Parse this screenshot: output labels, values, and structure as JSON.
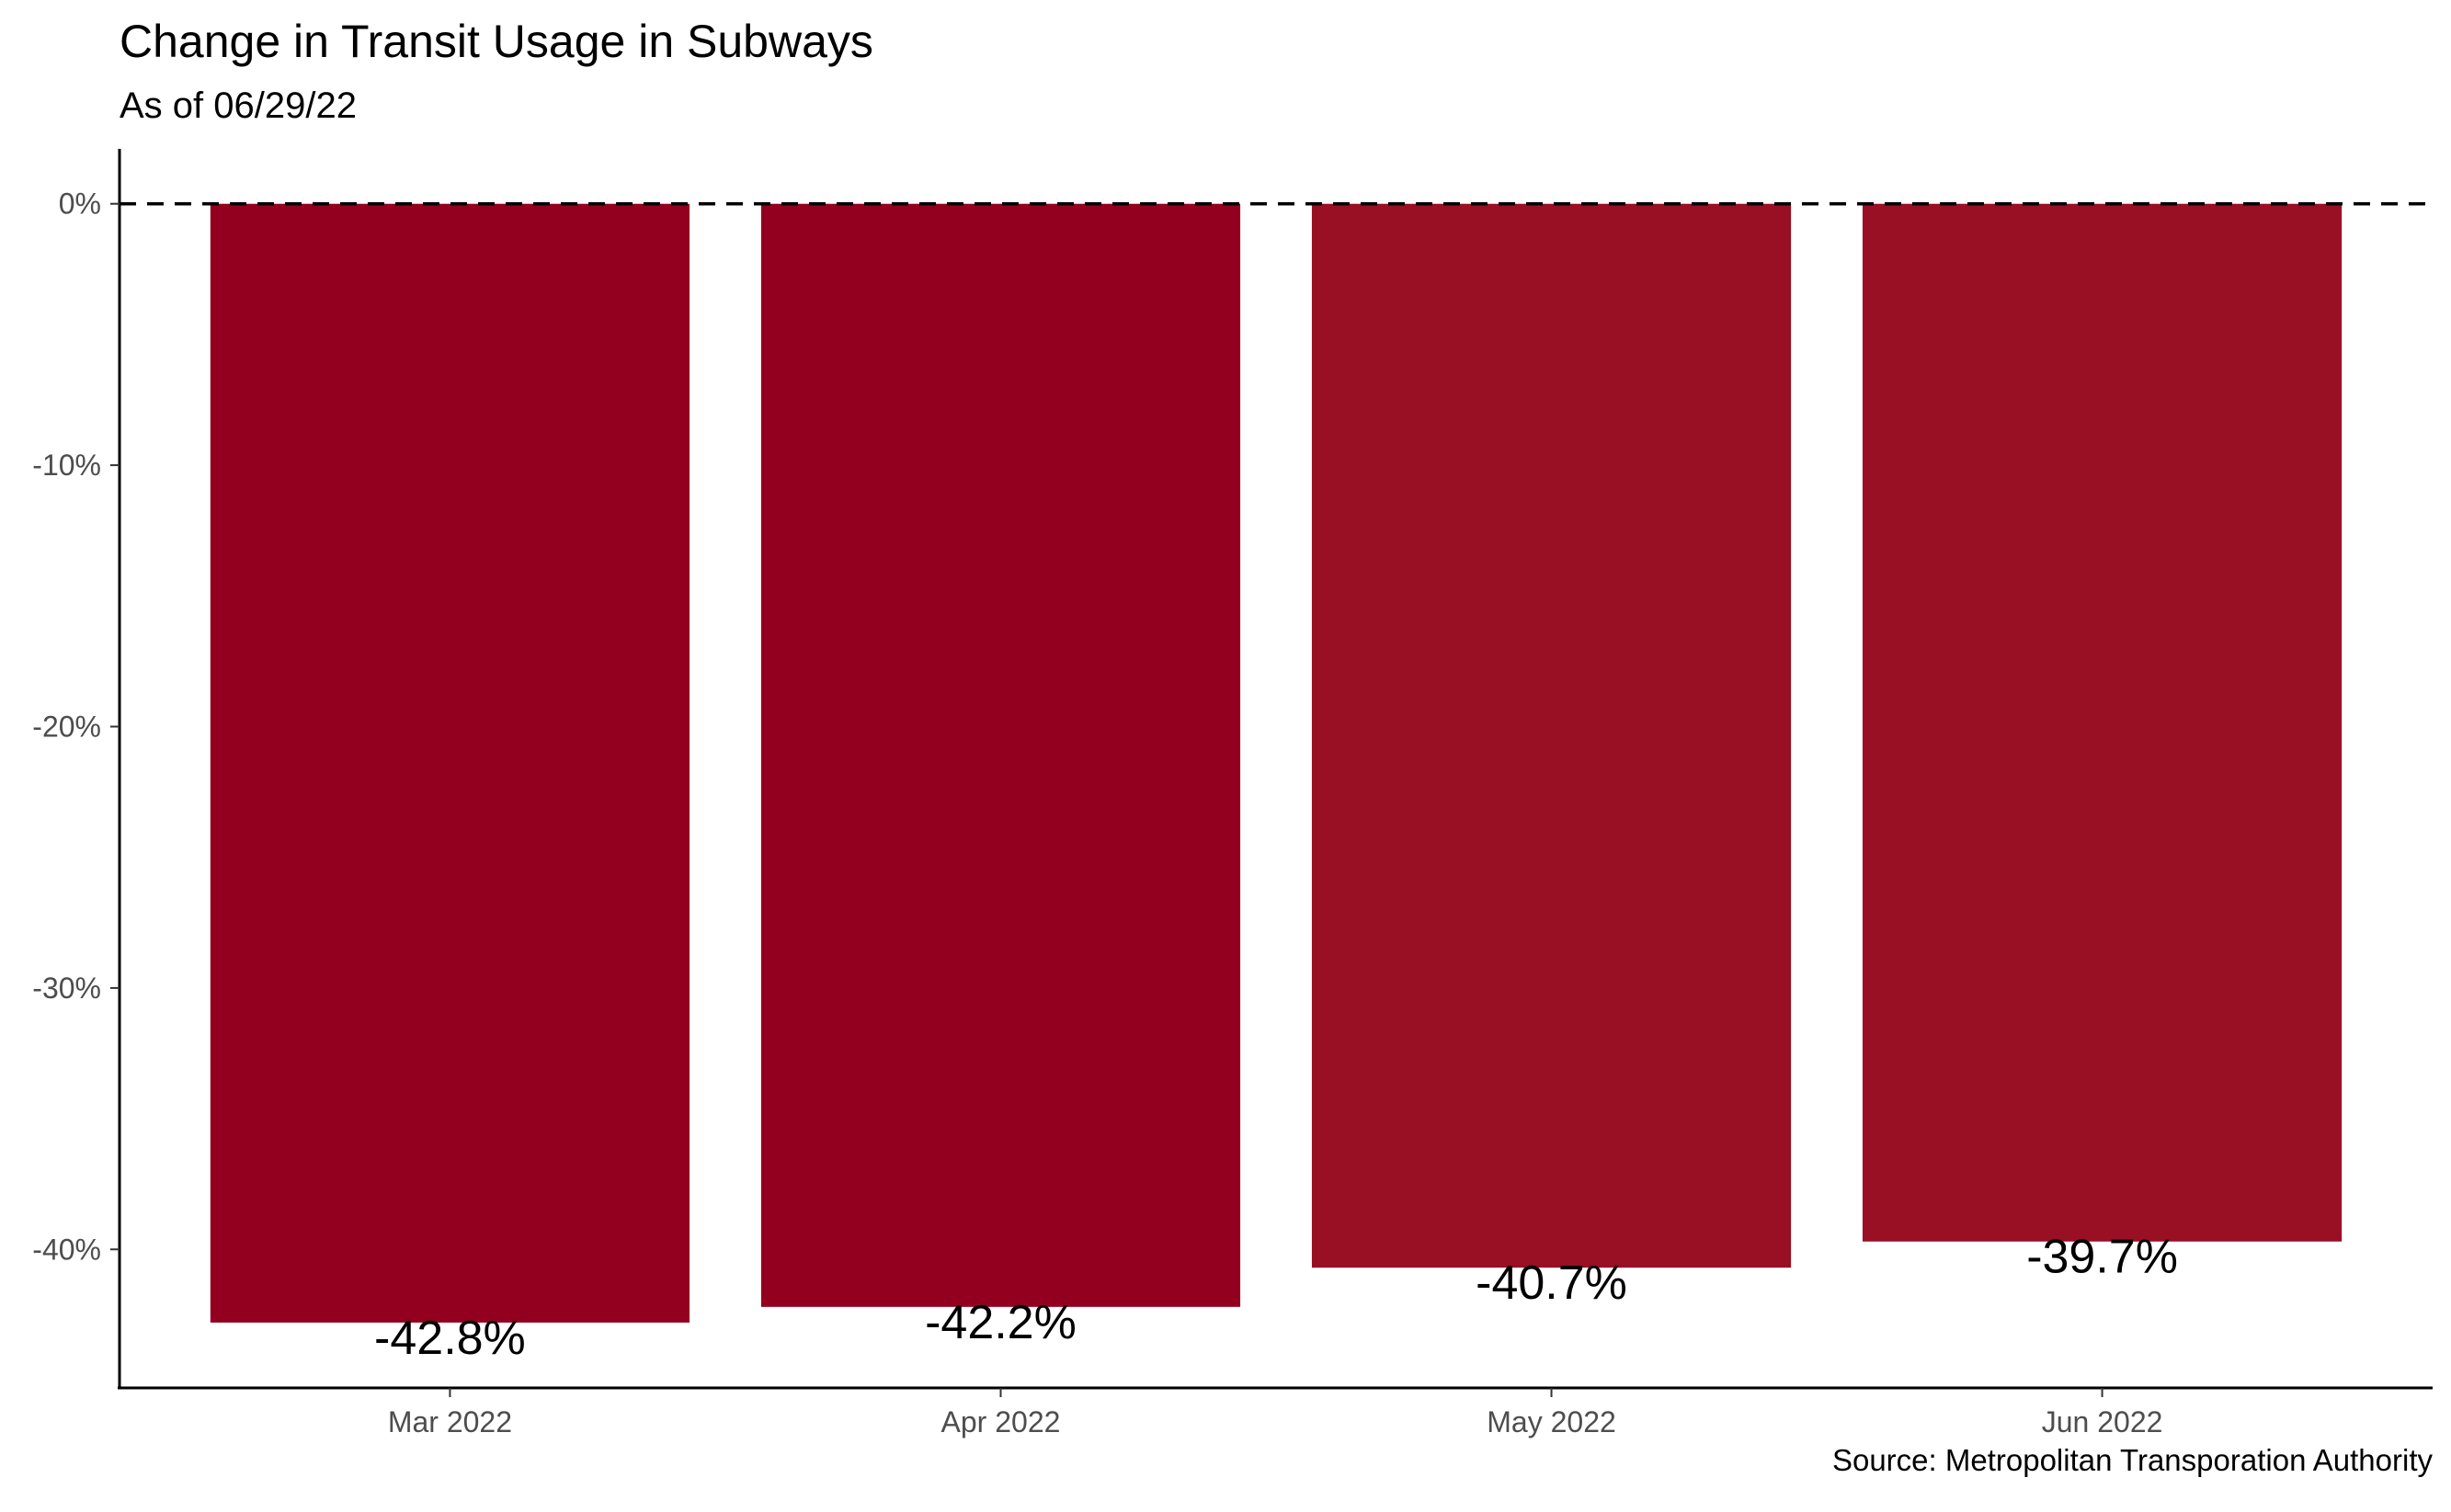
{
  "chart_data": {
    "type": "bar",
    "title": "Change in Transit Usage in Subways",
    "subtitle": "As of 06/29/22",
    "caption": "Source: Metropolitan Transporation Authority",
    "categories": [
      "Mar 2022",
      "Apr 2022",
      "May 2022",
      "Jun 2022"
    ],
    "values": [
      -42.8,
      -42.2,
      -40.7,
      -39.7
    ],
    "data_labels": [
      "-42.8%",
      "-42.2%",
      "-40.7%",
      "-39.7%"
    ],
    "y_ticks": [
      0,
      -10,
      -20,
      -30,
      -40
    ],
    "y_tick_labels": [
      "0%",
      "-10%",
      "-20%",
      "-30%",
      "-40%"
    ],
    "ylim": [
      -45.3,
      2.1
    ],
    "reference_line": {
      "value": 0,
      "style": "dashed"
    },
    "bar_colors": [
      "#93001f",
      "#93001f",
      "#990f24",
      "#990f24"
    ],
    "grid": false,
    "legend": "none"
  }
}
